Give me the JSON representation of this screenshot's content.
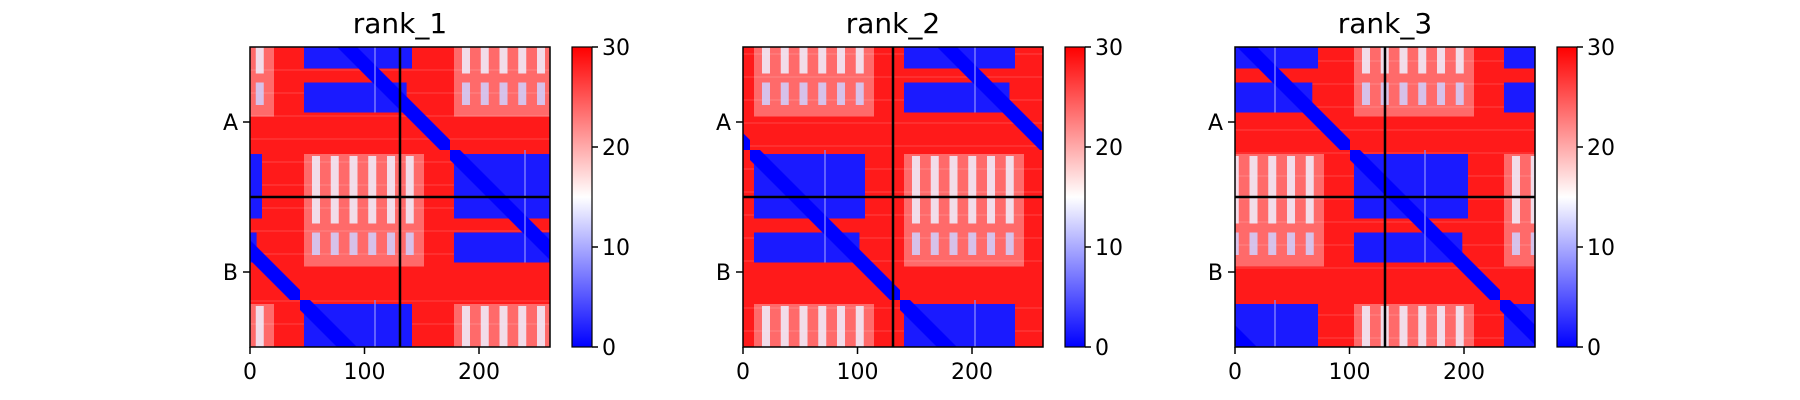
{
  "chart_data": {
    "type": "heatmap",
    "description_scale": "pairwise distance matrix, chains A and B, ~260 residues total",
    "x_ticks": [
      0,
      100,
      200
    ],
    "x_range": [
      0,
      262
    ],
    "chain_labels": [
      "A",
      "B"
    ],
    "chain_boundary": 131,
    "colorbar": {
      "range": [
        0,
        30
      ],
      "ticks": [
        0,
        10,
        20,
        30
      ],
      "colors": [
        "#0000ff",
        "#ffffff",
        "#ff0000"
      ]
    },
    "panels": [
      {
        "title": "rank_1"
      },
      {
        "title": "rank_2"
      },
      {
        "title": "rank_3"
      }
    ]
  }
}
